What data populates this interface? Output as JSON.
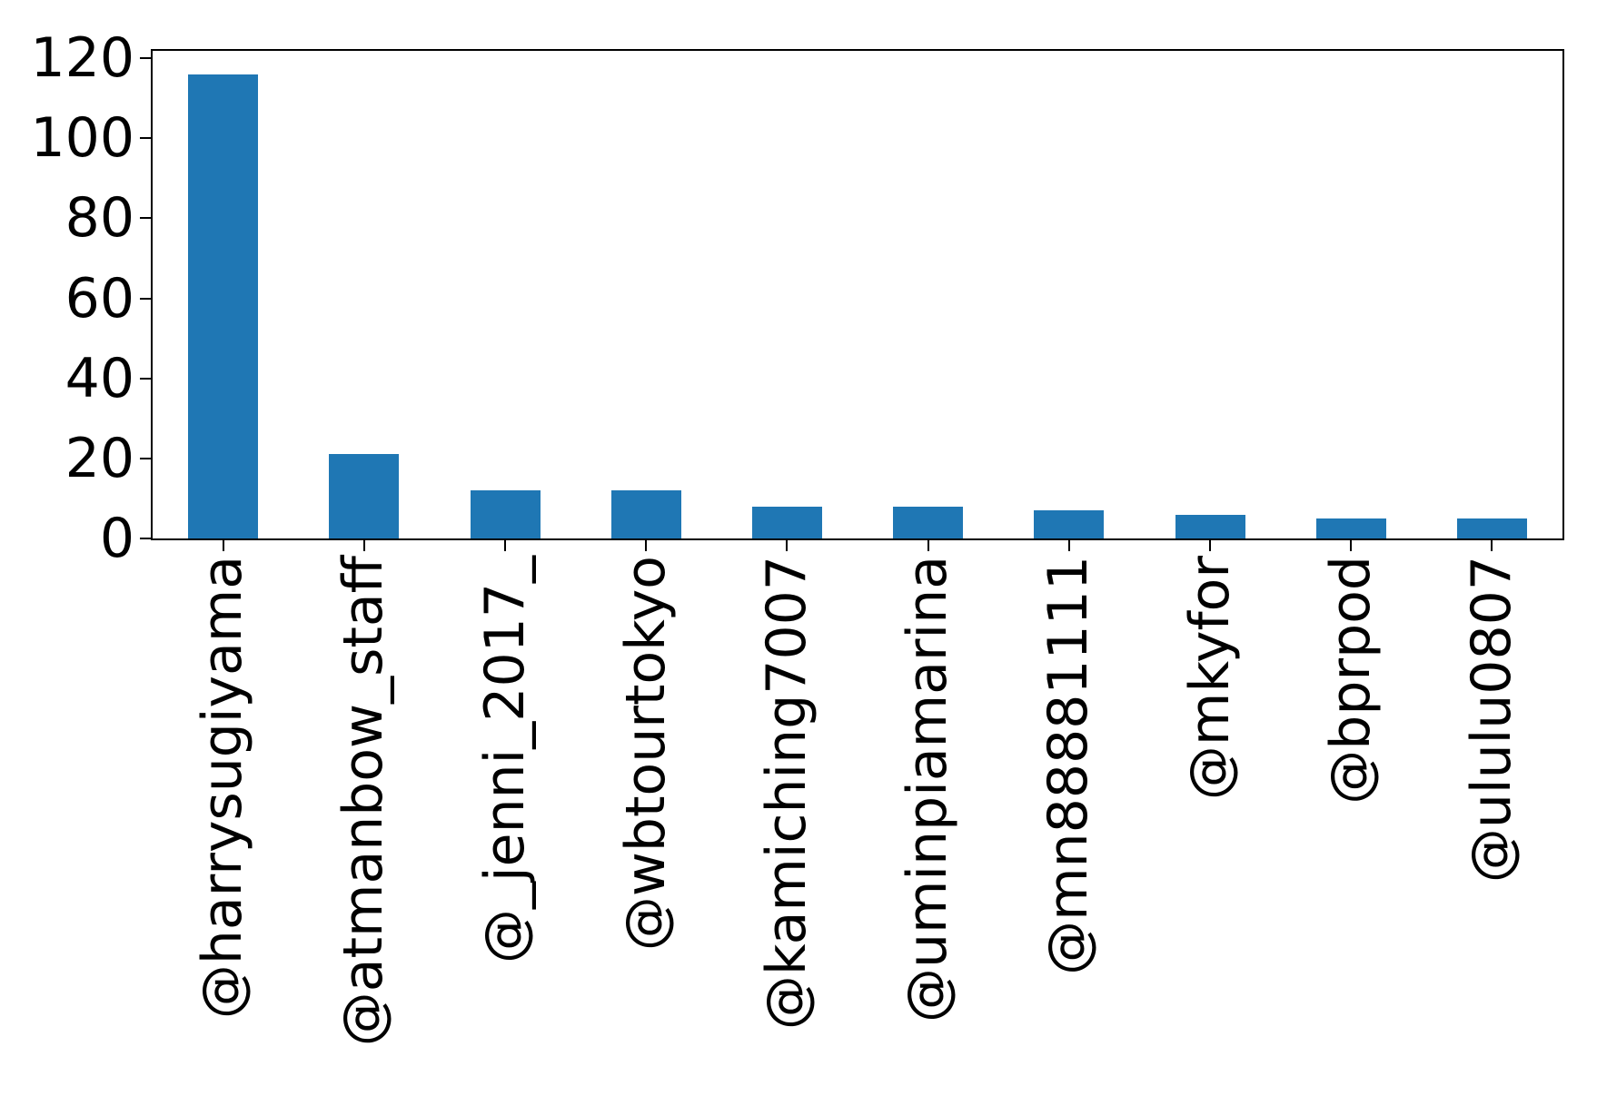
{
  "figure": {
    "background": "#ffffff"
  },
  "chart_data": {
    "type": "bar",
    "categories": [
      "@harrysugiyama",
      "@atmanbow_staff",
      "@_jenni_2017_",
      "@wbtourtokyo",
      "@kamiching7007",
      "@uminpiamarina",
      "@mn88881111",
      "@mkyfor",
      "@bprpod",
      "@ululu0807"
    ],
    "values": [
      116,
      21,
      12,
      12,
      8,
      8,
      7,
      6,
      5,
      5
    ],
    "title": "",
    "xlabel": "",
    "ylabel": "",
    "ylim": [
      0,
      121.8
    ],
    "yticks": [
      0,
      20,
      40,
      60,
      80,
      100,
      120
    ],
    "x_tick_rotation": 90,
    "bar_color": "#1f77b4",
    "axis_color": "#000000",
    "text_color": "#000000",
    "grid": false,
    "legend": null
  }
}
